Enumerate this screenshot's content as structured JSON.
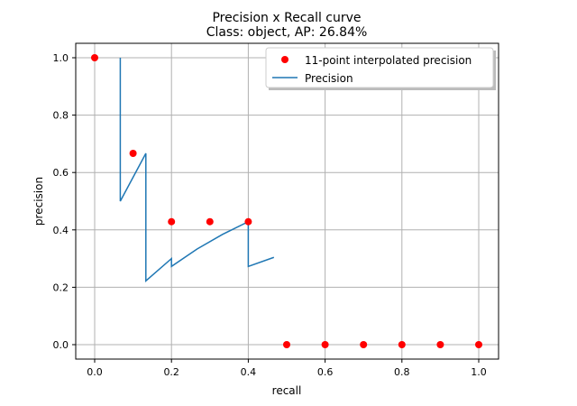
{
  "chart_data": {
    "type": "line",
    "title": "Precision x Recall curve",
    "subtitle": "Class: object, AP: 26.84%",
    "xlabel": "recall",
    "ylabel": "precision",
    "xlim": [
      -0.05,
      1.05
    ],
    "ylim": [
      -0.05,
      1.05
    ],
    "grid": true,
    "legend_position": "top-right",
    "xticks": [
      "0.0",
      "0.2",
      "0.4",
      "0.6",
      "0.8",
      "1.0"
    ],
    "yticks": [
      "0.0",
      "0.2",
      "0.4",
      "0.6",
      "0.8",
      "1.0"
    ],
    "series": [
      {
        "name": "11-point interpolated precision",
        "kind": "scatter",
        "color": "#ff0000",
        "x": [
          0.0,
          0.1,
          0.2,
          0.3,
          0.4,
          0.5,
          0.6,
          0.7,
          0.8,
          0.9,
          1.0
        ],
        "y": [
          1.0,
          0.6667,
          0.4286,
          0.4286,
          0.4286,
          0,
          0,
          0,
          0,
          0,
          0
        ]
      },
      {
        "name": "Precision",
        "kind": "line",
        "color": "#1f77b4",
        "x": [
          0.0667,
          0.0667,
          0.1333,
          0.1333,
          0.2,
          0.2,
          0.2667,
          0.3333,
          0.4,
          0.4,
          0.4667
        ],
        "y": [
          1.0,
          0.5,
          0.6667,
          0.2222,
          0.3,
          0.2727,
          0.3333,
          0.3846,
          0.4286,
          0.2727,
          0.3043
        ]
      }
    ]
  }
}
